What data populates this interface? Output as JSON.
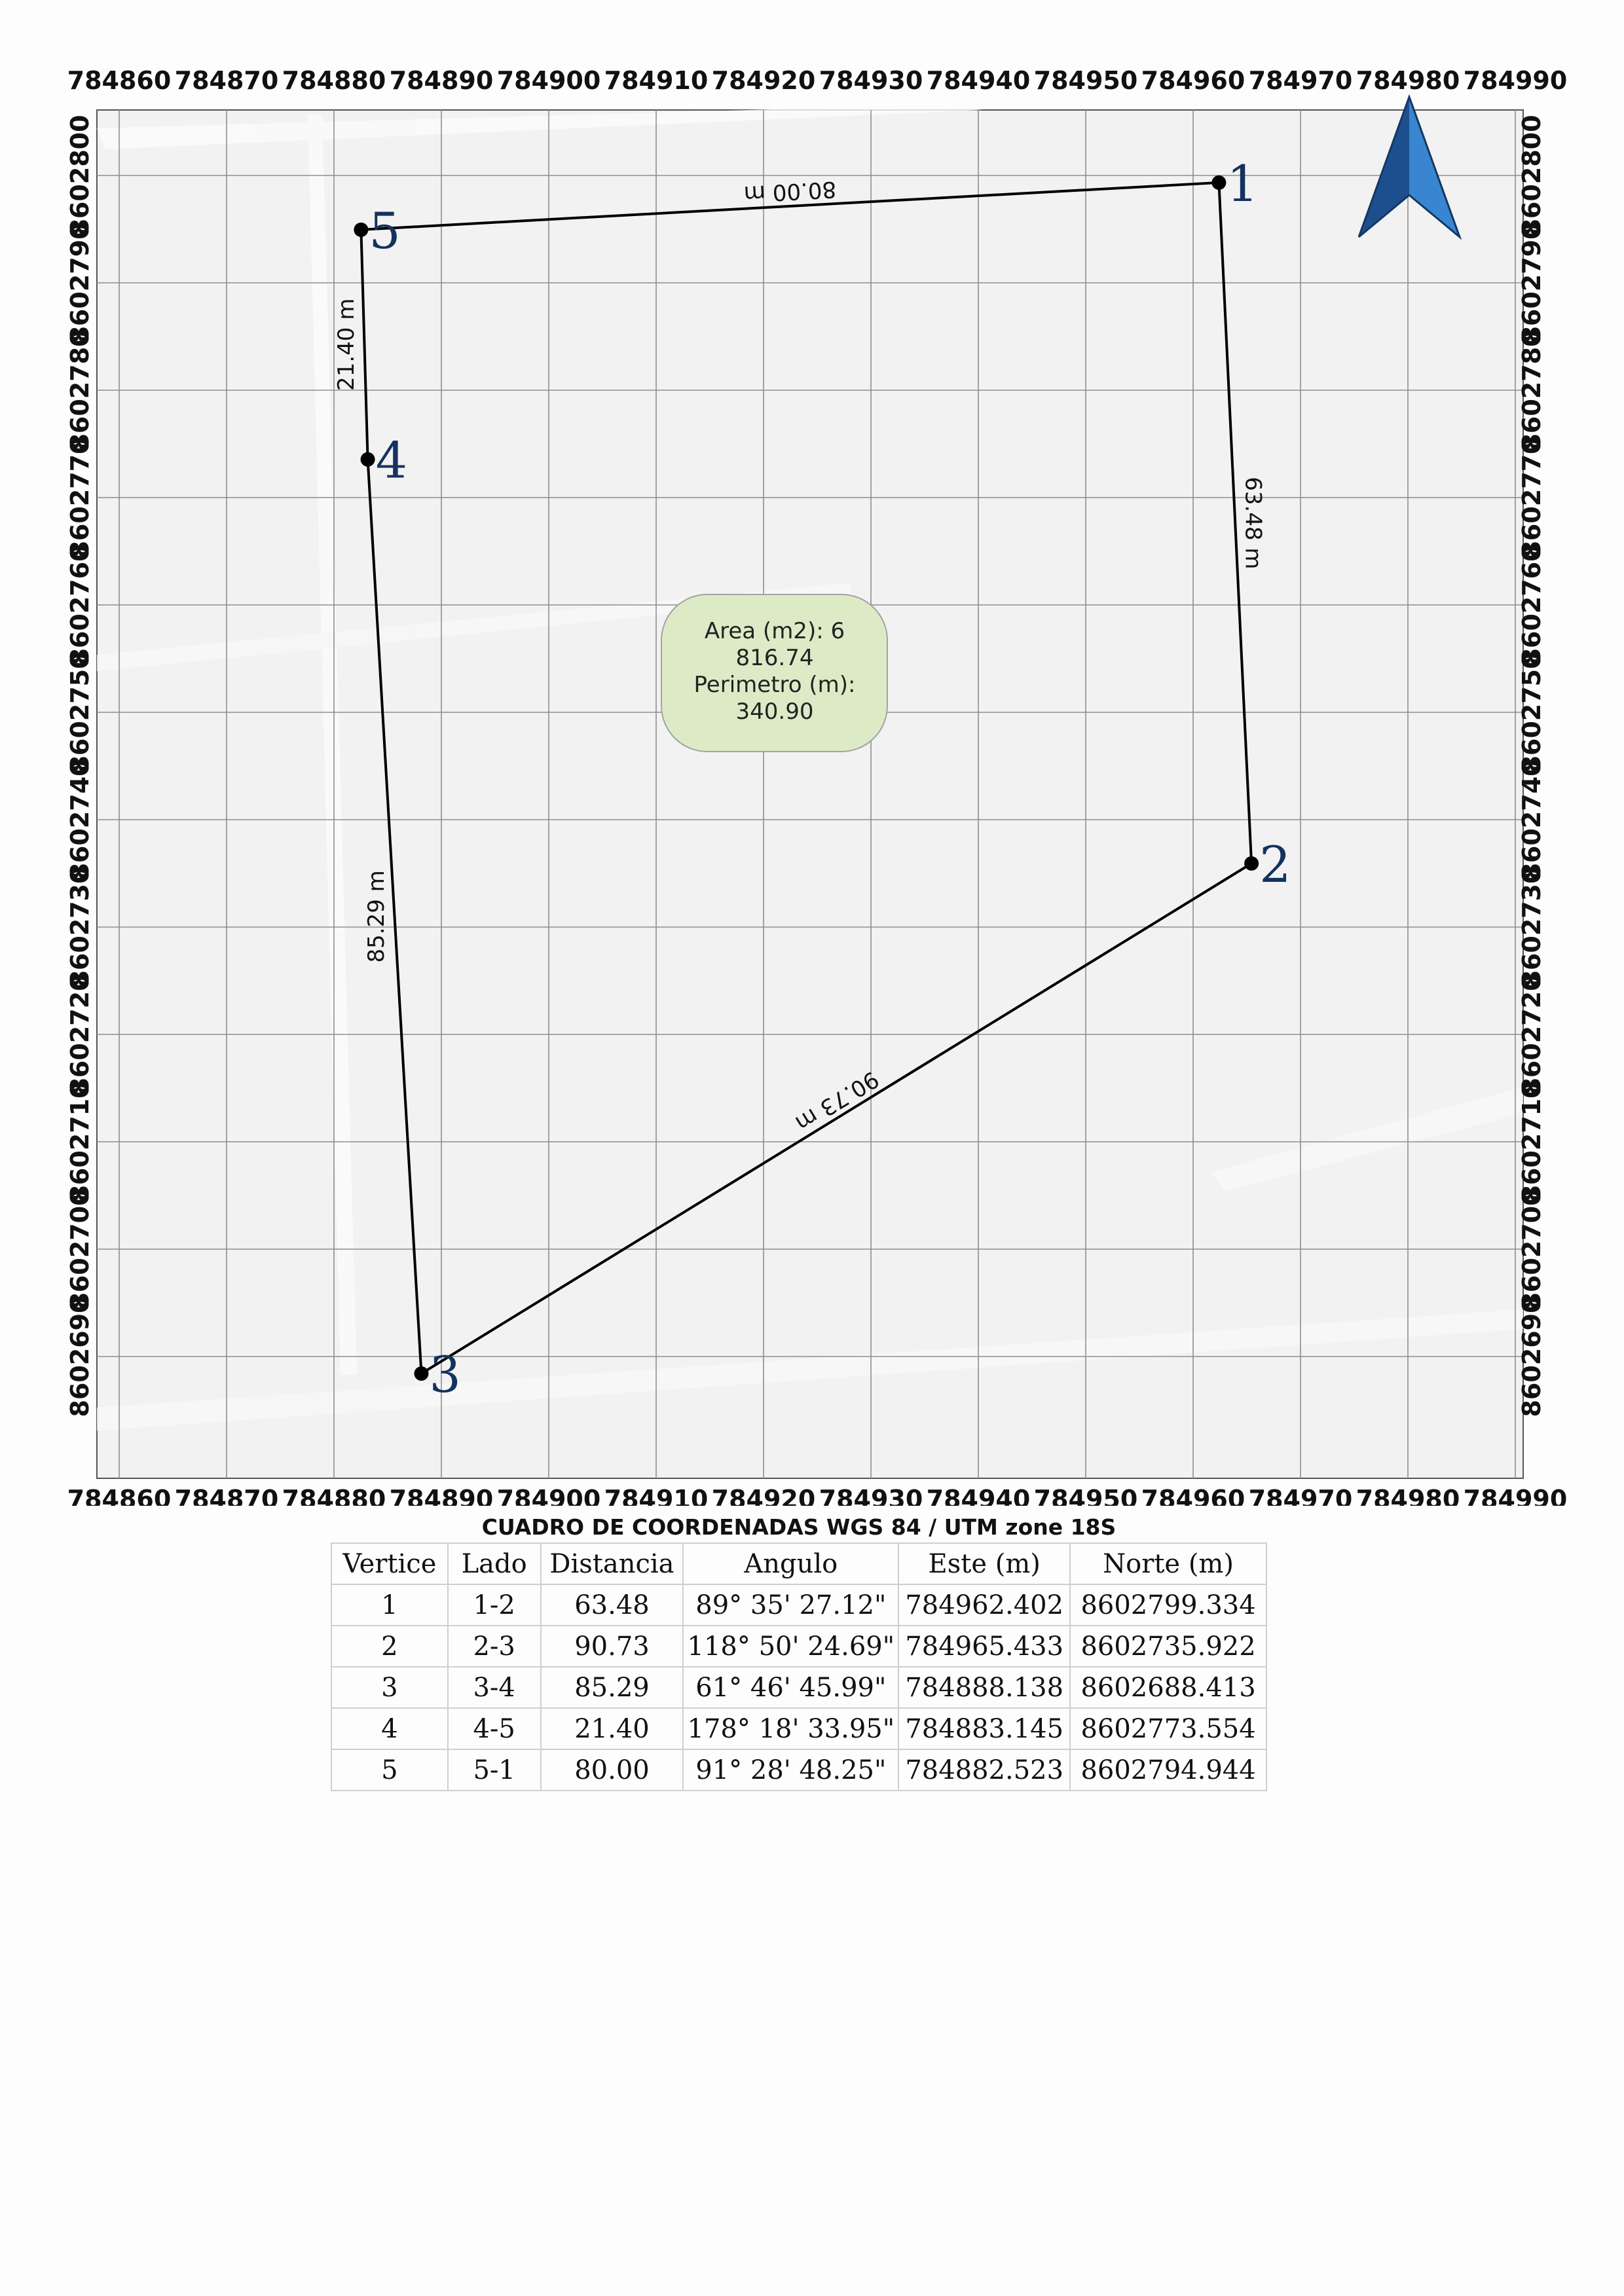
{
  "map": {
    "x_ticks": [
      "784860",
      "784870",
      "784880",
      "784890",
      "784900",
      "784910",
      "784920",
      "784930",
      "784940",
      "784950",
      "784960",
      "784970",
      "784980",
      "784990"
    ],
    "y_ticks": [
      "8602690",
      "8602700",
      "8602710",
      "8602720",
      "8602730",
      "8602740",
      "8602750",
      "8602760",
      "8602770",
      "8602780",
      "8602790",
      "8602800"
    ],
    "vertices": [
      {
        "id": "1",
        "este": 784962.402,
        "norte": 8602799.334
      },
      {
        "id": "2",
        "este": 784965.433,
        "norte": 8602735.922
      },
      {
        "id": "3",
        "este": 784888.138,
        "norte": 8602688.413
      },
      {
        "id": "4",
        "este": 784883.145,
        "norte": 8602773.554
      },
      {
        "id": "5",
        "este": 784882.523,
        "norte": 8602794.944
      }
    ],
    "side_labels": [
      {
        "from": "1",
        "to": "2",
        "label": "63.48 m"
      },
      {
        "from": "2",
        "to": "3",
        "label": "90.73 m"
      },
      {
        "from": "3",
        "to": "4",
        "label": "85.29 m"
      },
      {
        "from": "4",
        "to": "5",
        "label": "21.40 m"
      },
      {
        "from": "5",
        "to": "1",
        "label": "80.00 m"
      }
    ],
    "area_box": {
      "line1": "Area (m2): 6",
      "line2": "816.74",
      "line3": "Perimetro (m):",
      "line4": "340.90"
    },
    "colors": {
      "north_arrow": "#2f6db5",
      "vertex_label": "#14325e",
      "area_fill": "#dcebc6",
      "area_stroke": "#a3a3a3"
    },
    "icons": [
      "north-arrow-icon"
    ]
  },
  "table": {
    "title": "CUADRO DE COORDENADAS WGS 84 / UTM zone 18S",
    "headers": [
      "Vertice",
      "Lado",
      "Distancia",
      "Angulo",
      "Este (m)",
      "Norte (m)"
    ],
    "rows": [
      [
        "1",
        "1-2",
        "63.48",
        "89° 35' 27.12\"",
        "784962.402",
        "8602799.334"
      ],
      [
        "2",
        "2-3",
        "90.73",
        "118° 50' 24.69\"",
        "784965.433",
        "8602735.922"
      ],
      [
        "3",
        "3-4",
        "85.29",
        "61° 46' 45.99\"",
        "784888.138",
        "8602688.413"
      ],
      [
        "4",
        "4-5",
        "21.40",
        "178° 18' 33.95\"",
        "784883.145",
        "8602773.554"
      ],
      [
        "5",
        "5-1",
        "80.00",
        "91° 28' 48.25\"",
        "784882.523",
        "8602794.944"
      ]
    ]
  }
}
